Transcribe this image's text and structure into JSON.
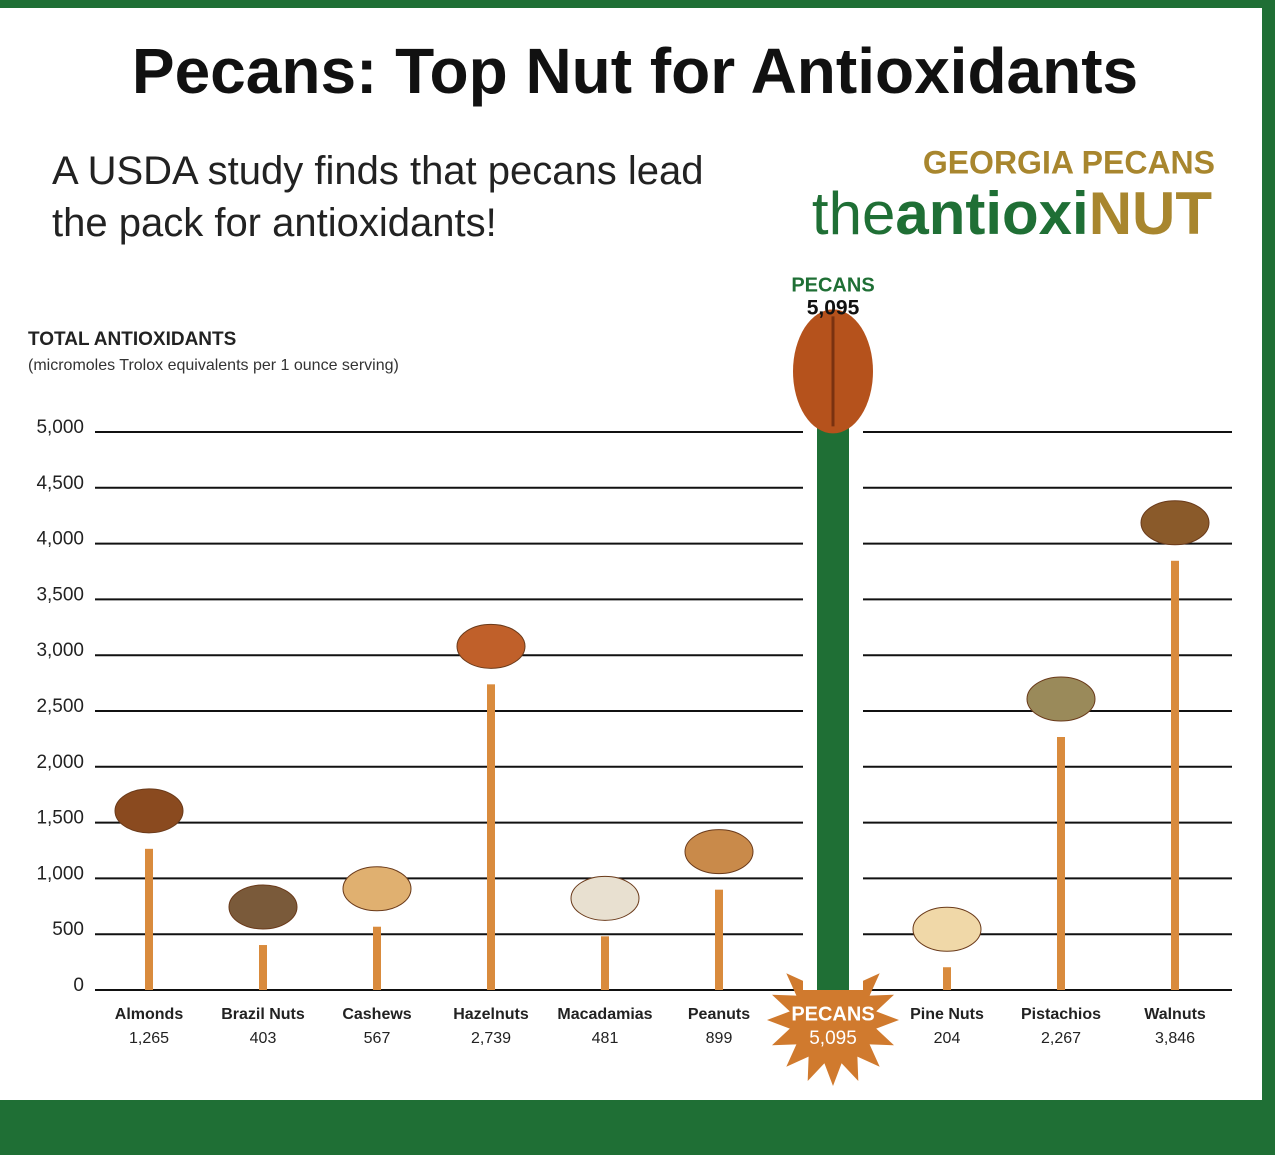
{
  "chart_data": {
    "type": "bar",
    "title": "Pecans: Top Nut for Antioxidants",
    "subtitle": "A USDA study finds that pecans lead the pack for antioxidants!",
    "logo": {
      "top": "GEORGIA PECANS",
      "parts": [
        "the",
        "antioxi",
        "NUT"
      ]
    },
    "y_label": "TOTAL ANTIOXIDANTS",
    "y_sublabel": "(micromoles Trolox equivalents per 1 ounce serving)",
    "categories": [
      "Almonds",
      "Brazil Nuts",
      "Cashews",
      "Hazelnuts",
      "Macadamias",
      "Peanuts",
      "PECANS",
      "Pine Nuts",
      "Pistachios",
      "Walnuts"
    ],
    "values": [
      1265,
      403,
      567,
      2739,
      481,
      899,
      5095,
      204,
      2267,
      3846
    ],
    "value_labels": [
      "1,265",
      "403",
      "567",
      "2,739",
      "481",
      "899",
      "5,095",
      "204",
      "2,267",
      "3,846"
    ],
    "colors": [
      "#d98b3d",
      "#d98b3d",
      "#d98b3d",
      "#d98b3d",
      "#d98b3d",
      "#d98b3d",
      "#1f6f35",
      "#d98b3d",
      "#d98b3d",
      "#d98b3d"
    ],
    "ylim": [
      0,
      5000
    ],
    "yticks": [
      0,
      500,
      {
        "value": 1000,
        "label": "1,000"
      },
      {
        "value": 1500,
        "label": "1,500"
      },
      {
        "value": 2000,
        "label": "2,000"
      },
      {
        "value": 2500,
        "label": "2,500"
      },
      {
        "value": 3000,
        "label": "3,000"
      },
      {
        "value": 3500,
        "label": "3,500"
      },
      {
        "value": 4000,
        "label": "4,000"
      },
      {
        "value": 4500,
        "label": "4,500"
      },
      {
        "value": 5000,
        "label": "5,000"
      }
    ],
    "grid": true
  }
}
